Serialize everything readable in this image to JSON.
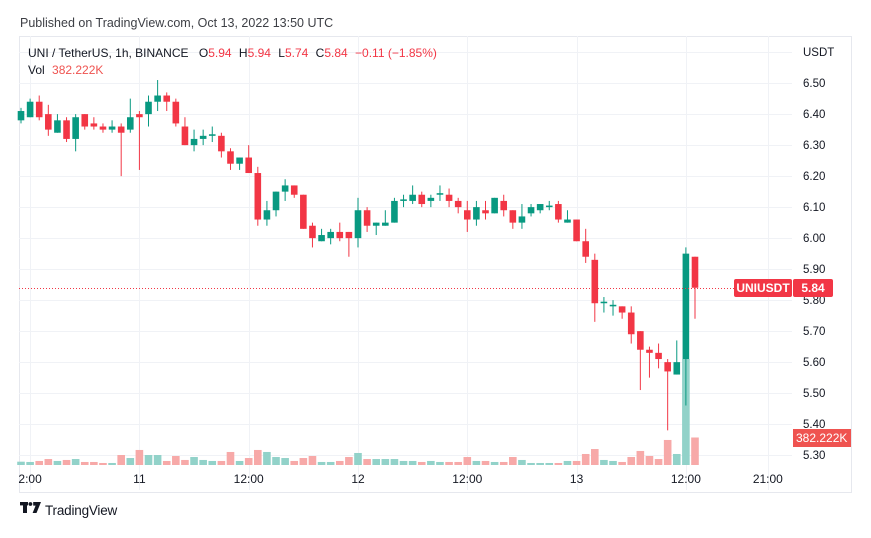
{
  "header": {
    "published": "Published on TradingView.com, Oct 13, 2022 13:50 UTC"
  },
  "legend": {
    "symbol": "UNI / TetherUS, 1h, BINANCE",
    "o_label": "O",
    "o": "5.94",
    "h_label": "H",
    "h": "5.94",
    "l_label": "L",
    "l": "5.74",
    "c_label": "C",
    "c": "5.84",
    "change": "−0.11 (−1.85%)",
    "vol_label": "Vol",
    "vol": "382.222K"
  },
  "tags": {
    "symbol": "UNIUSDT",
    "last_price": "5.84",
    "last_volume": "382.222K"
  },
  "footer": {
    "brand": "TradingView",
    "logo_icon": "tradingview-logo-icon"
  },
  "colors": {
    "up": "#089981",
    "down": "#f23645",
    "up_volume": "#92d2c9",
    "down_volume": "#f7a9a8",
    "grid": "#f0f2f6",
    "axis_text": "#131722",
    "last_price_line": "#f23645"
  },
  "chart_data": {
    "type": "bar",
    "variant": "candlestick",
    "title": "UNI / TetherUS, 1h, BINANCE",
    "xlabel": "",
    "ylabel": "USDT",
    "y_unit_label": "USDT",
    "y_unit_at": 6.6,
    "ylim": [
      5.265,
      6.652
    ],
    "grid": true,
    "legend_position": "top-left",
    "y_ticks": [
      6.5,
      6.4,
      6.3,
      6.2,
      6.1,
      6.0,
      5.9,
      5.8,
      5.7,
      5.6,
      5.5,
      5.4,
      5.3
    ],
    "y_tick_labels": [
      "6.50",
      "6.40",
      "6.30",
      "6.20",
      "6.10",
      "6.00",
      "5.90",
      "5.80",
      "5.70",
      "5.60",
      "5.50",
      "5.40",
      "5.30"
    ],
    "x_ticks": [
      {
        "label": "2:00",
        "index": 1
      },
      {
        "label": "11",
        "index": 13
      },
      {
        "label": "12:00",
        "index": 25
      },
      {
        "label": "12",
        "index": 37
      },
      {
        "label": "12:00",
        "index": 49
      },
      {
        "label": "13",
        "index": 61
      },
      {
        "label": "12:00",
        "index": 73
      },
      {
        "label": "21:00",
        "index": 82
      }
    ],
    "last_price": 5.84,
    "last_volume_k": 382.222,
    "open": [
      6.38,
      6.39,
      6.44,
      6.4,
      6.34,
      6.38,
      6.32,
      6.4,
      6.37,
      6.36,
      6.35,
      6.36,
      6.35,
      6.4,
      6.4,
      6.44,
      6.46,
      6.44,
      6.36,
      6.3,
      6.32,
      6.33,
      6.33,
      6.28,
      6.24,
      6.26,
      6.21,
      6.06,
      6.09,
      6.15,
      6.17,
      6.14,
      6.04,
      5.99,
      6.0,
      6.02,
      6.02,
      6.0,
      6.09,
      6.04,
      6.04,
      6.05,
      6.12,
      6.12,
      6.14,
      6.12,
      6.14,
      6.14,
      6.12,
      6.09,
      6.06,
      6.09,
      6.08,
      6.12,
      6.09,
      6.05,
      6.08,
      6.09,
      6.1,
      6.11,
      6.05,
      6.06,
      5.99,
      5.93,
      5.79,
      5.78,
      5.78,
      5.76,
      5.7,
      5.64,
      5.63,
      5.6,
      5.56,
      5.61,
      5.94
    ],
    "high": [
      6.42,
      6.45,
      6.46,
      6.43,
      6.4,
      6.39,
      6.4,
      6.4,
      6.39,
      6.37,
      6.38,
      6.37,
      6.45,
      6.41,
      6.46,
      6.51,
      6.47,
      6.45,
      6.39,
      6.35,
      6.35,
      6.36,
      6.34,
      6.29,
      6.26,
      6.3,
      6.23,
      6.12,
      6.15,
      6.19,
      6.17,
      6.14,
      6.05,
      6.03,
      6.03,
      6.05,
      6.02,
      6.13,
      6.1,
      6.05,
      6.09,
      6.13,
      6.14,
      6.17,
      6.15,
      6.14,
      6.17,
      6.16,
      6.13,
      6.12,
      6.12,
      6.12,
      6.13,
      6.14,
      6.09,
      6.11,
      6.11,
      6.11,
      6.12,
      6.12,
      6.09,
      6.06,
      6.03,
      5.95,
      5.81,
      5.8,
      5.78,
      5.78,
      5.7,
      5.65,
      5.66,
      5.61,
      5.67,
      5.97,
      5.94
    ],
    "low": [
      6.37,
      6.39,
      6.38,
      6.33,
      6.34,
      6.31,
      6.28,
      6.35,
      6.35,
      6.34,
      6.34,
      6.2,
      6.34,
      6.22,
      6.36,
      6.41,
      6.41,
      6.36,
      6.3,
      6.28,
      6.3,
      6.31,
      6.26,
      6.22,
      6.22,
      6.21,
      6.04,
      6.04,
      6.07,
      6.12,
      6.13,
      6.03,
      5.97,
      5.99,
      5.98,
      5.99,
      5.94,
      5.97,
      6.02,
      6.01,
      6.04,
      6.05,
      6.1,
      6.11,
      6.1,
      6.1,
      6.12,
      6.1,
      6.08,
      6.02,
      6.04,
      6.06,
      6.08,
      6.07,
      6.03,
      6.03,
      6.07,
      6.08,
      6.09,
      6.05,
      6.05,
      5.99,
      5.92,
      5.73,
      5.76,
      5.75,
      5.74,
      5.66,
      5.51,
      5.55,
      5.58,
      5.38,
      5.56,
      5.46,
      5.74
    ],
    "close": [
      6.41,
      6.44,
      6.39,
      6.35,
      6.38,
      6.32,
      6.39,
      6.36,
      6.36,
      6.35,
      6.36,
      6.34,
      6.39,
      6.39,
      6.44,
      6.46,
      6.44,
      6.37,
      6.3,
      6.32,
      6.33,
      6.335,
      6.28,
      6.24,
      6.26,
      6.21,
      6.06,
      6.09,
      6.15,
      6.17,
      6.14,
      6.03,
      6.0,
      6.01,
      6.02,
      6.0,
      6.0,
      6.09,
      6.04,
      6.05,
      6.05,
      6.12,
      6.125,
      6.14,
      6.11,
      6.13,
      6.145,
      6.12,
      6.1,
      6.06,
      6.1,
      6.08,
      6.13,
      6.09,
      6.05,
      6.07,
      6.1,
      6.11,
      6.105,
      6.06,
      6.06,
      5.99,
      5.94,
      5.79,
      5.795,
      5.785,
      5.76,
      5.69,
      5.64,
      5.63,
      5.61,
      5.57,
      5.6,
      5.95,
      5.84
    ],
    "volume_k": [
      46,
      42,
      56,
      83,
      56,
      70,
      83,
      42,
      42,
      28,
      28,
      139,
      97,
      209,
      139,
      139,
      56,
      125,
      70,
      111,
      70,
      56,
      56,
      181,
      56,
      97,
      209,
      181,
      111,
      97,
      56,
      97,
      125,
      42,
      42,
      56,
      111,
      167,
      83,
      83,
      83,
      83,
      56,
      56,
      42,
      56,
      42,
      42,
      42,
      111,
      56,
      56,
      42,
      42,
      111,
      70,
      28,
      28,
      28,
      28,
      56,
      56,
      153,
      222,
      70,
      56,
      42,
      111,
      195,
      125,
      83,
      348,
      153,
      1473,
      382.222
    ]
  }
}
